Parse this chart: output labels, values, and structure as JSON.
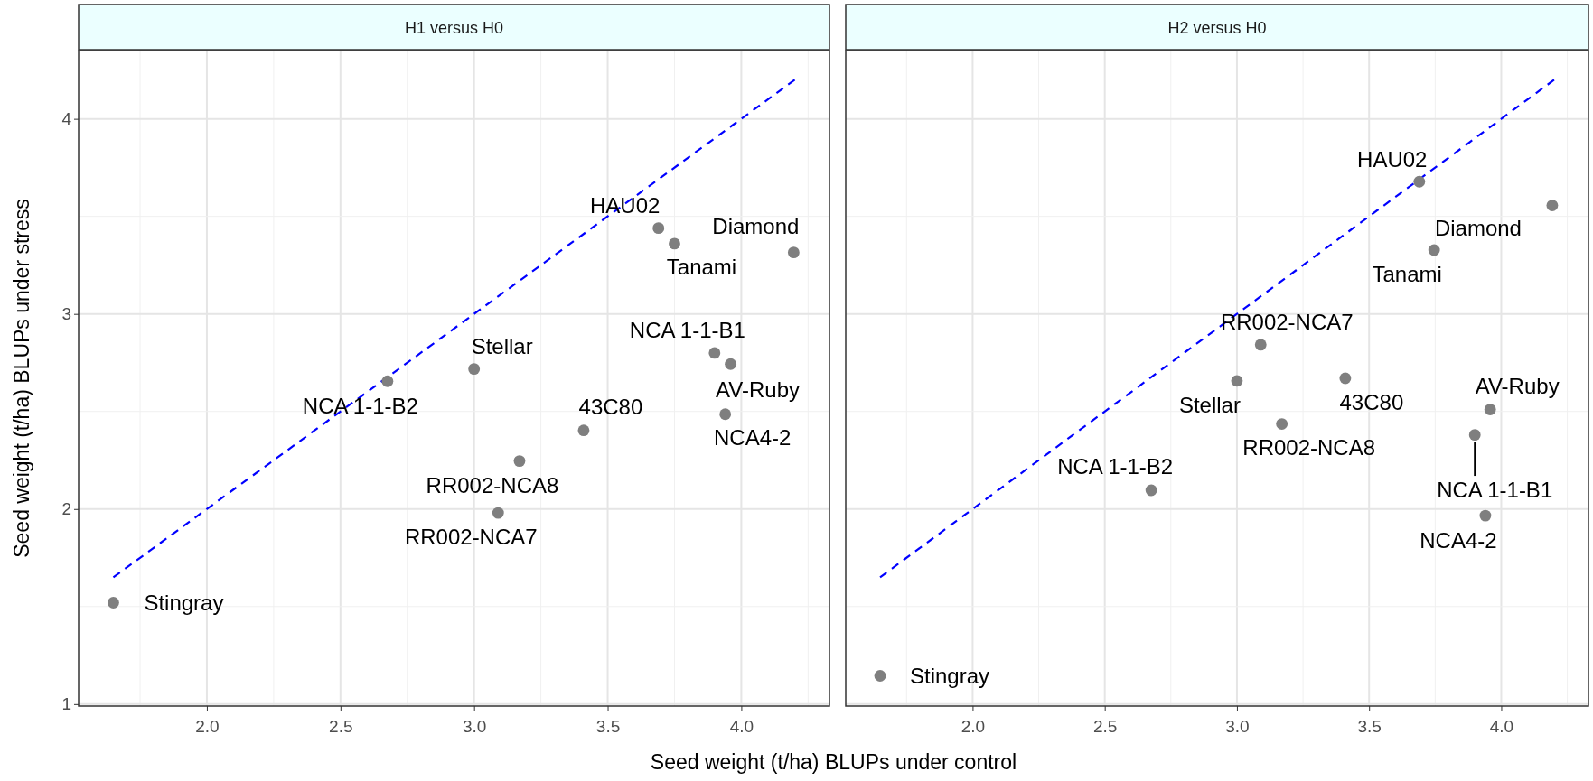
{
  "chart_data": [
    {
      "type": "scatter",
      "title": "H1 versus H0",
      "xlabel": "Seed weight (t/ha) BLUPs under control",
      "ylabel": "Seed weight (t/ha) BLUPs under stress",
      "xlim": [
        1.52,
        4.33
      ],
      "ylim": [
        0.99,
        4.35
      ],
      "xticks": [
        {
          "value": 2,
          "label": "2.0"
        },
        {
          "value": 2.5,
          "label": "2.5"
        },
        {
          "value": 3,
          "label": "3.0"
        },
        {
          "value": 3.5,
          "label": "3.5"
        },
        {
          "value": 4,
          "label": "4.0"
        }
      ],
      "yticks": [
        1,
        2,
        3,
        4
      ],
      "grid": true,
      "series": [
        {
          "type": "line",
          "color": "#0000ff",
          "line_style": "dashed",
          "x": [
            1.65,
            4.2
          ],
          "values": [
            1.65,
            4.2
          ]
        },
        {
          "type": "scatter",
          "color": "#7f7f7f",
          "marker": "circle",
          "x": [
            1.65,
            2.676,
            3.0,
            3.17,
            3.09,
            3.41,
            3.69,
            3.75,
            4.196,
            3.9,
            3.96,
            3.94
          ],
          "values": [
            1.52,
            2.655,
            2.718,
            2.246,
            1.98,
            2.403,
            3.44,
            3.36,
            3.315,
            2.8,
            2.743,
            2.486
          ]
        }
      ],
      "annotations": [
        {
          "text": "Stingray",
          "x": 1.65,
          "y": 1.52
        },
        {
          "text": "NCA 1-1-B2",
          "x": 2.676,
          "y": 2.655
        },
        {
          "text": "Stellar",
          "x": 3.0,
          "y": 2.718
        },
        {
          "text": "RR002-NCA8",
          "x": 3.17,
          "y": 2.246
        },
        {
          "text": "RR002-NCA7",
          "x": 3.09,
          "y": 1.98
        },
        {
          "text": "43C80",
          "x": 3.41,
          "y": 2.403
        },
        {
          "text": "HAU02",
          "x": 3.69,
          "y": 3.44
        },
        {
          "text": "Tanami",
          "x": 3.75,
          "y": 3.36
        },
        {
          "text": "Diamond",
          "x": 4.196,
          "y": 3.315
        },
        {
          "text": "NCA 1-1-B1",
          "x": 3.9,
          "y": 2.8
        },
        {
          "text": "AV-Ruby",
          "x": 3.96,
          "y": 2.743
        },
        {
          "text": "NCA4-2",
          "x": 3.94,
          "y": 2.486
        }
      ]
    },
    {
      "type": "scatter",
      "title": "H2 versus H0",
      "xlim": [
        1.52,
        4.33
      ],
      "ylim": [
        0.99,
        4.35
      ],
      "xticks": [
        {
          "value": 2,
          "label": "2.0"
        },
        {
          "value": 2.5,
          "label": "2.5"
        },
        {
          "value": 3,
          "label": "3.0"
        },
        {
          "value": 3.5,
          "label": "3.5"
        },
        {
          "value": 4,
          "label": "4.0"
        }
      ],
      "yticks": [
        1,
        2,
        3,
        4
      ],
      "tick_labels": "x",
      "grid": true,
      "series": [
        {
          "type": "line",
          "color": "#0000ff",
          "line_style": "dashed",
          "x": [
            1.65,
            4.2
          ],
          "values": [
            1.65,
            4.2
          ]
        },
        {
          "type": "scatter",
          "color": "#7f7f7f",
          "marker": "circle",
          "x": [
            1.65,
            2.676,
            3.0,
            3.09,
            3.41,
            3.17,
            3.69,
            4.193,
            3.746,
            3.958,
            3.9,
            3.94
          ],
          "values": [
            1.145,
            2.096,
            2.657,
            2.842,
            2.67,
            2.436,
            3.678,
            3.556,
            3.327,
            2.51,
            2.38,
            1.966
          ]
        }
      ],
      "annotations": [
        {
          "text": "Stingray",
          "x": 1.65,
          "y": 1.145
        },
        {
          "text": "NCA 1-1-B2",
          "x": 2.676,
          "y": 2.096
        },
        {
          "text": "Stellar",
          "x": 3.0,
          "y": 2.657
        },
        {
          "text": "RR002-NCA7",
          "x": 3.09,
          "y": 2.842
        },
        {
          "text": "43C80",
          "x": 3.41,
          "y": 2.67
        },
        {
          "text": "RR002-NCA8",
          "x": 3.17,
          "y": 2.436
        },
        {
          "text": "HAU02",
          "x": 3.69,
          "y": 3.678
        },
        {
          "text": "Diamond",
          "x": 4.193,
          "y": 3.556
        },
        {
          "text": "Tanami",
          "x": 3.746,
          "y": 3.327
        },
        {
          "text": "AV-Ruby",
          "x": 3.958,
          "y": 2.51
        },
        {
          "text": "NCA 1-1-B1",
          "x": 3.9,
          "y": 2.38
        },
        {
          "text": "NCA4-2",
          "x": 3.94,
          "y": 1.966
        }
      ]
    }
  ]
}
